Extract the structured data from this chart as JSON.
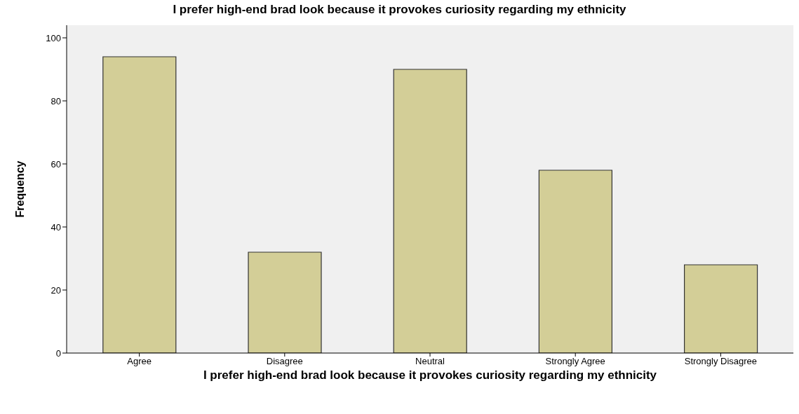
{
  "chart_data": {
    "type": "bar",
    "title": "I prefer high-end brad look because it provokes curiosity regarding my ethnicity",
    "xlabel": "I prefer high-end brad look because it provokes curiosity regarding my ethnicity",
    "ylabel": "Frequency",
    "categories": [
      "Agree",
      "Disagree",
      "Neutral",
      "Strongly Agree",
      "Strongly Disagree"
    ],
    "values": [
      94,
      32,
      90,
      58,
      28
    ],
    "color": "#d3ce97",
    "ylim": [
      0,
      104
    ],
    "yticks": [
      0,
      20,
      40,
      60,
      80,
      100
    ],
    "grid": false
  }
}
